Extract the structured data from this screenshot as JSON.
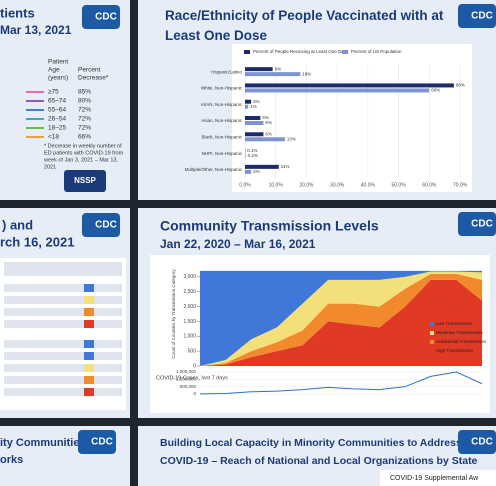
{
  "panels": {
    "age_panel": {
      "title": "tients",
      "subtitle": "Mar 13, 2021",
      "logo": "CDC",
      "age_header": [
        "Patient",
        "Age",
        "(years)"
      ],
      "percent_header": [
        "Percent",
        "Decrease*"
      ],
      "rows": [
        [
          "≥75",
          "85%"
        ],
        [
          "65–74",
          "80%"
        ],
        [
          "55–64",
          "72%"
        ],
        [
          "26–54",
          "72%"
        ],
        [
          "18–25",
          "72%"
        ],
        [
          "<18",
          "66%"
        ]
      ],
      "colors": [
        "#e06fb0",
        "#8a5cc0",
        "#3f7fd6",
        "#2fb3a8",
        "#6cbf3c",
        "#e8a23a"
      ],
      "note_lines": [
        "* Decrease in weekly number of",
        "ED patients with COVID-19 from",
        "week of Jan 3, 2021 – Mar 13,",
        "2021"
      ],
      "badge": "NSSP"
    },
    "table_panel": {
      "title": ") and",
      "subtitle": "rch 16, 2021",
      "logo": "CDC"
    },
    "communities_panel": {
      "title": "ity Communities",
      "subtitle": "orks",
      "logo": "CDC"
    },
    "capacity_panel": {
      "title": "Building Local Capacity in Minority Communities to Address",
      "subtitle": "COVID-19 – Reach of National and Local Organizations by State",
      "logo": "CDC",
      "caption": "COVID-19 Supplemental Aw"
    },
    "race_logo": "CDC",
    "transmission_logo": "CDC"
  },
  "chart_data": [
    {
      "type": "hbar",
      "title": "Race/Ethnicity of People Vaccinated with at Least One Dose",
      "categories": [
        "Hispanic/Latino",
        "White, Non-Hispanic",
        "AI/AN, Non-Hispanic",
        "Asian, Non-Hispanic",
        "Black, Non-Hispanic",
        "NHPI, Non-Hispanic",
        "Multiple/Other, Non-Hispanic"
      ],
      "series": [
        {
          "name": "Percent of People Receiving at Least One Dose",
          "color": "#1c2b6e",
          "values": [
            9,
            68,
            2,
            5,
            6,
            0.1,
            11
          ],
          "value_labels": [
            "9%",
            "68%",
            "2%",
            "5%",
            "6%",
            "0.1%",
            "11%"
          ]
        },
        {
          "name": "Percent of US Population",
          "color": "#7f93d3",
          "values": [
            18,
            60,
            1,
            6,
            13,
            0.2,
            2
          ],
          "value_labels": [
            "18%",
            "60%",
            "1%",
            "6%",
            "13%",
            "0.2%",
            "2%"
          ]
        }
      ],
      "xlim": [
        0,
        70
      ],
      "xticks": [
        {
          "value": 0,
          "label": "0.0%"
        },
        {
          "value": 10,
          "label": "10.0%"
        },
        {
          "value": 20,
          "label": "20.0%"
        },
        {
          "value": 30,
          "label": "30.0%"
        },
        {
          "value": 40,
          "label": "40.0%"
        },
        {
          "value": 50,
          "label": "50.0%"
        },
        {
          "value": 60,
          "label": "60.0%"
        },
        {
          "value": 70,
          "label": "70.0%"
        }
      ]
    },
    {
      "type": "stacked-area",
      "title": "Community Transmission Levels",
      "subtitle": "Jan 22, 2020 – Mar 16, 2021",
      "ylabel": "Count of Counties by Transmission Category",
      "ylim": [
        0,
        3500
      ],
      "yticks": [
        0,
        500,
        {
          "value": 1000,
          "label": "1,000"
        },
        {
          "value": 1500,
          "label": "1,500"
        },
        {
          "value": 2000,
          "label": "2,000"
        },
        {
          "value": 2500,
          "label": "2,500"
        },
        {
          "value": 3000,
          "label": "3,000"
        }
      ],
      "series": [
        {
          "name": "High Transmission",
          "color": "#e03a24",
          "values": [
            0,
            50,
            300,
            500,
            700,
            1500,
            1400,
            1300,
            2000,
            2900,
            2900,
            2200
          ]
        },
        {
          "name": "Substantial Transmission",
          "color": "#f08a2c",
          "values": [
            0,
            50,
            200,
            300,
            500,
            600,
            700,
            700,
            600,
            200,
            200,
            700
          ]
        },
        {
          "name": "Moderate Transmission",
          "color": "#f3e07a",
          "values": [
            0,
            100,
            400,
            500,
            900,
            800,
            800,
            900,
            400,
            80,
            80,
            250
          ]
        },
        {
          "name": "Low Transmission",
          "color": "#3f78d8",
          "values": [
            3200,
            3000,
            2300,
            1900,
            1100,
            300,
            300,
            300,
            200,
            20,
            20,
            50
          ]
        }
      ],
      "legend": [
        "Low Transmission",
        "Moderate Transmission",
        "Substantial Transmission",
        "High Transmission"
      ],
      "cases": {
        "label": "COVID-19 Cases, last 7 days",
        "color": "#2f6fd0",
        "ylim": [
          0,
          1500000
        ],
        "yticks": [
          0,
          {
            "value": 500000,
            "label": "500,000"
          },
          {
            "value": 1000000,
            "label": "1,000,000"
          },
          {
            "value": 1500000,
            "label": "1,500,000"
          }
        ],
        "values": [
          10000,
          30000,
          150000,
          200000,
          300000,
          450000,
          350000,
          300000,
          500000,
          1200000,
          1500000,
          700000
        ]
      }
    }
  ]
}
